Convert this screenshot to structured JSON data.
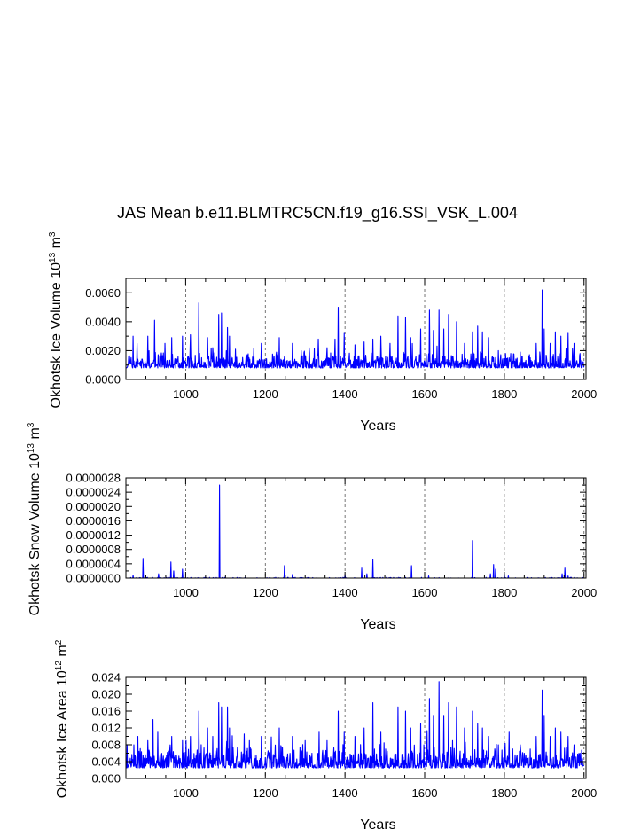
{
  "title": "JAS Mean b.e11.BLMTRC5CN.f19_g16.SSI_VSK_L.004",
  "chart_data": [
    {
      "type": "line",
      "ylabel_main": "Okhotsk Ice Volume 10",
      "ylabel_exp": "13",
      "ylabel_unit": " m",
      "ylabel_unit_exp": "3",
      "xlabel": "Years",
      "xlim": [
        850,
        2005
      ],
      "ylim": [
        0,
        0.007
      ],
      "xticks": [
        1000,
        1200,
        1400,
        1600,
        1800,
        2000
      ],
      "yticks": [
        0,
        0.002,
        0.004,
        0.006
      ],
      "ytick_labels": [
        "0.0000",
        "0.0020",
        "0.0040",
        "0.0060"
      ],
      "grid_x_dashed": true,
      "series_color": "#0000ff",
      "baseline": 0.0008,
      "noise": 0.0007,
      "seed": 11,
      "spikes": [
        [
          868,
          0.003
        ],
        [
          878,
          0.0025
        ],
        [
          905,
          0.003
        ],
        [
          922,
          0.0041
        ],
        [
          948,
          0.0025
        ],
        [
          965,
          0.0029
        ],
        [
          992,
          0.003
        ],
        [
          1012,
          0.0031
        ],
        [
          1033,
          0.0053
        ],
        [
          1055,
          0.0029
        ],
        [
          1068,
          0.0022
        ],
        [
          1083,
          0.0045
        ],
        [
          1090,
          0.0046
        ],
        [
          1105,
          0.0036
        ],
        [
          1110,
          0.003
        ],
        [
          1125,
          0.0021
        ],
        [
          1155,
          0.0017
        ],
        [
          1190,
          0.0025
        ],
        [
          1235,
          0.0029
        ],
        [
          1268,
          0.0025
        ],
        [
          1290,
          0.002
        ],
        [
          1310,
          0.0022
        ],
        [
          1333,
          0.0028
        ],
        [
          1355,
          0.0022
        ],
        [
          1375,
          0.0028
        ],
        [
          1383,
          0.005
        ],
        [
          1398,
          0.0032
        ],
        [
          1425,
          0.0024
        ],
        [
          1448,
          0.0026
        ],
        [
          1470,
          0.0028
        ],
        [
          1490,
          0.003
        ],
        [
          1513,
          0.0025
        ],
        [
          1533,
          0.0044
        ],
        [
          1552,
          0.0043
        ],
        [
          1565,
          0.0029
        ],
        [
          1590,
          0.0035
        ],
        [
          1612,
          0.0048
        ],
        [
          1622,
          0.0034
        ],
        [
          1636,
          0.0048
        ],
        [
          1648,
          0.0035
        ],
        [
          1660,
          0.0045
        ],
        [
          1680,
          0.004
        ],
        [
          1700,
          0.0025
        ],
        [
          1720,
          0.0033
        ],
        [
          1733,
          0.0037
        ],
        [
          1745,
          0.0033
        ],
        [
          1760,
          0.0029
        ],
        [
          1785,
          0.002
        ],
        [
          1812,
          0.0015
        ],
        [
          1840,
          0.0019
        ],
        [
          1865,
          0.0015
        ],
        [
          1880,
          0.0025
        ],
        [
          1895,
          0.0062
        ],
        [
          1900,
          0.0035
        ],
        [
          1915,
          0.0025
        ],
        [
          1928,
          0.0033
        ],
        [
          1942,
          0.003
        ],
        [
          1960,
          0.0032
        ],
        [
          1975,
          0.0025
        ],
        [
          1990,
          0.0018
        ]
      ]
    },
    {
      "type": "line",
      "ylabel_main": "Okhotsk Snow Volume 10",
      "ylabel_exp": "13",
      "ylabel_unit": " m",
      "ylabel_unit_exp": "3",
      "xlabel": "Years",
      "xlim": [
        850,
        2005
      ],
      "ylim": [
        0,
        2.8e-06
      ],
      "xticks": [
        1000,
        1200,
        1400,
        1600,
        1800,
        2000
      ],
      "yticks": [
        0,
        4e-07,
        8e-07,
        1.2e-06,
        1.6e-06,
        2e-06,
        2.4e-06,
        2.8e-06
      ],
      "ytick_labels": [
        "0.0000000",
        "0.0000004",
        "0.0000008",
        "0.0000012",
        "0.0000016",
        "0.0000020",
        "0.0000024",
        "0.0000028"
      ],
      "grid_x_dashed": true,
      "series_color": "#0000ff",
      "baseline": 0,
      "noise": 2e-08,
      "seed": 23,
      "sparse": true,
      "spikes": [
        [
          868,
          8e-08
        ],
        [
          893,
          5.5e-07
        ],
        [
          932,
          1.2e-07
        ],
        [
          963,
          4.5e-07
        ],
        [
          970,
          2e-07
        ],
        [
          992,
          2.5e-07
        ],
        [
          1085,
          2.6e-06
        ],
        [
          1248,
          3.5e-07
        ],
        [
          1268,
          1e-07
        ],
        [
          1400,
          8e-08
        ],
        [
          1442,
          2.8e-07
        ],
        [
          1455,
          1.2e-07
        ],
        [
          1470,
          5.2e-07
        ],
        [
          1567,
          3.5e-07
        ],
        [
          1610,
          6e-08
        ],
        [
          1720,
          1.05e-06
        ],
        [
          1765,
          1.2e-07
        ],
        [
          1773,
          3.8e-07
        ],
        [
          1778,
          2.5e-07
        ],
        [
          1800,
          1e-07
        ],
        [
          1810,
          6e-08
        ],
        [
          1945,
          1.2e-07
        ],
        [
          1952,
          2.8e-07
        ],
        [
          1960,
          6e-08
        ]
      ]
    },
    {
      "type": "line",
      "ylabel_main": "Okhotsk Ice Area 10",
      "ylabel_exp": "12",
      "ylabel_unit": " m",
      "ylabel_unit_exp": "2",
      "xlabel": "Years",
      "xlim": [
        850,
        2005
      ],
      "ylim": [
        0,
        0.024
      ],
      "xticks": [
        1000,
        1200,
        1400,
        1600,
        1800,
        2000
      ],
      "yticks": [
        0,
        0.004,
        0.008,
        0.012,
        0.016,
        0.02,
        0.024
      ],
      "ytick_labels": [
        "0.000",
        "0.004",
        "0.008",
        "0.012",
        "0.016",
        "0.020",
        "0.024"
      ],
      "grid_x_dashed": true,
      "series_color": "#0000ff",
      "baseline": 0.0025,
      "noise": 0.0035,
      "seed": 37,
      "spikes": [
        [
          870,
          0.008
        ],
        [
          880,
          0.01
        ],
        [
          905,
          0.009
        ],
        [
          918,
          0.014
        ],
        [
          930,
          0.011
        ],
        [
          965,
          0.01
        ],
        [
          992,
          0.009
        ],
        [
          1012,
          0.01
        ],
        [
          1033,
          0.016
        ],
        [
          1055,
          0.012
        ],
        [
          1068,
          0.01
        ],
        [
          1083,
          0.018
        ],
        [
          1090,
          0.017
        ],
        [
          1105,
          0.017
        ],
        [
          1110,
          0.012
        ],
        [
          1160,
          0.009
        ],
        [
          1190,
          0.01
        ],
        [
          1235,
          0.012
        ],
        [
          1268,
          0.01
        ],
        [
          1300,
          0.009
        ],
        [
          1335,
          0.011
        ],
        [
          1355,
          0.009
        ],
        [
          1383,
          0.016
        ],
        [
          1398,
          0.011
        ],
        [
          1425,
          0.01
        ],
        [
          1448,
          0.012
        ],
        [
          1470,
          0.018
        ],
        [
          1490,
          0.011
        ],
        [
          1533,
          0.017
        ],
        [
          1552,
          0.016
        ],
        [
          1565,
          0.012
        ],
        [
          1590,
          0.013
        ],
        [
          1612,
          0.019
        ],
        [
          1622,
          0.015
        ],
        [
          1636,
          0.023
        ],
        [
          1648,
          0.015
        ],
        [
          1660,
          0.018
        ],
        [
          1680,
          0.017
        ],
        [
          1700,
          0.012
        ],
        [
          1720,
          0.016
        ],
        [
          1733,
          0.013
        ],
        [
          1745,
          0.012
        ],
        [
          1760,
          0.01
        ],
        [
          1785,
          0.008
        ],
        [
          1812,
          0.011
        ],
        [
          1840,
          0.008
        ],
        [
          1865,
          0.007
        ],
        [
          1880,
          0.01
        ],
        [
          1895,
          0.021
        ],
        [
          1900,
          0.015
        ],
        [
          1915,
          0.01
        ],
        [
          1928,
          0.012
        ],
        [
          1942,
          0.011
        ],
        [
          1960,
          0.01
        ],
        [
          1975,
          0.008
        ],
        [
          1990,
          0.006
        ]
      ]
    }
  ]
}
